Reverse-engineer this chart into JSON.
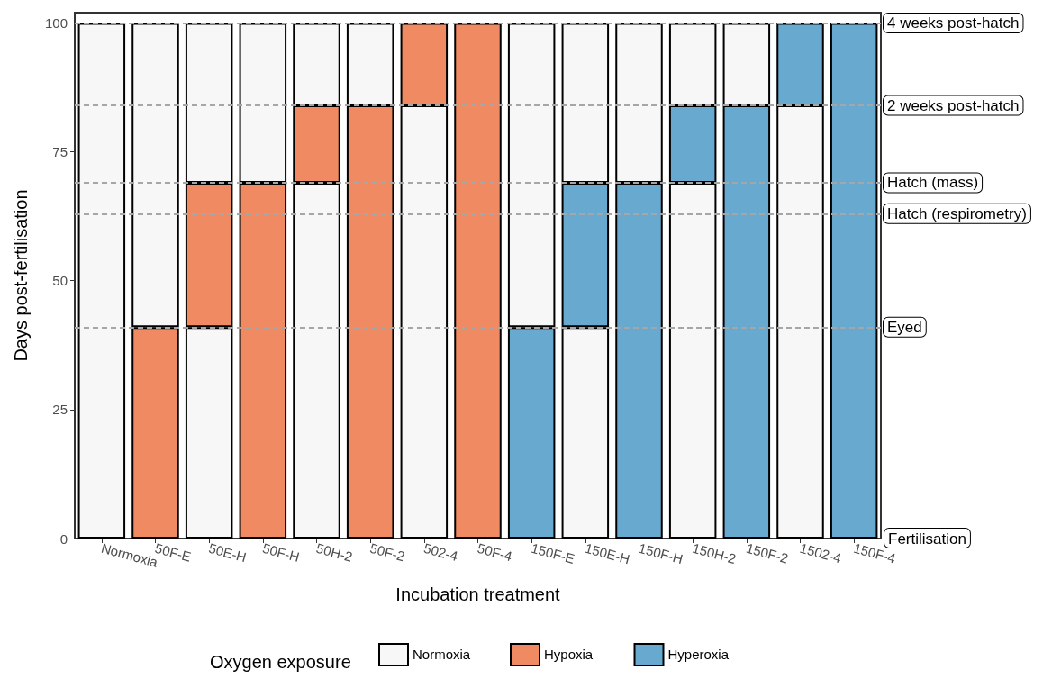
{
  "chart_data": {
    "type": "bar",
    "stacked": true,
    "xlabel": "Incubation treatment",
    "ylabel": "Days post-fertilisation",
    "legend_title": "Oxygen exposure",
    "legend": "bottom",
    "grid": false,
    "categories": [
      "Normoxia",
      "50F-E",
      "50E-H",
      "50F-H",
      "50H-2",
      "50F-2",
      "502-4",
      "50F-4",
      "150F-E",
      "150E-H",
      "150F-H",
      "150H-2",
      "150F-2",
      "1502-4",
      "150F-4"
    ],
    "series": [
      {
        "name": "Normoxia",
        "color": "#f7f7f7",
        "values": [
          100,
          null,
          41,
          null,
          69,
          null,
          84,
          null,
          null,
          41,
          null,
          69,
          null,
          84,
          null
        ]
      },
      {
        "name": "Hypoxia",
        "color": "#ef8a62",
        "values": [
          null,
          41,
          28,
          69,
          15,
          84,
          16,
          100,
          null,
          null,
          null,
          null,
          null,
          null,
          null
        ]
      },
      {
        "name": "Hyperoxia",
        "color": "#67a9cf",
        "values": [
          null,
          null,
          null,
          null,
          null,
          null,
          null,
          null,
          41,
          28,
          69,
          15,
          84,
          16,
          100
        ]
      },
      {
        "color": "#f7f7f7",
        "values": [
          null,
          59,
          31,
          31,
          16,
          16,
          null,
          null,
          59,
          31,
          31,
          16,
          16,
          null,
          null
        ]
      }
    ],
    "annotations": [
      "Fertilisation"
    ],
    "ylim": [
      0,
      102
    ],
    "yticks": [
      0,
      25,
      50,
      75,
      100
    ],
    "ref_lines": [
      {
        "axis": "y",
        "value": 41,
        "label": "Eyed",
        "color": "#a6a6a6",
        "line_style": "dashed"
      },
      {
        "axis": "y",
        "value": 63,
        "label": "Hatch (respirometry)",
        "color": "#a6a6a6",
        "line_style": "dashed"
      },
      {
        "axis": "y",
        "value": 69,
        "label": "Hatch (mass)",
        "color": "#a6a6a6",
        "line_style": "dashed"
      },
      {
        "axis": "y",
        "value": 84,
        "label": "2 weeks post-hatch",
        "color": "#a6a6a6",
        "line_style": "dashed"
      },
      {
        "axis": "y",
        "value": 100,
        "label": "4 weeks post-hatch",
        "color": "#a6a6a6",
        "line_style": "dashed"
      }
    ]
  }
}
